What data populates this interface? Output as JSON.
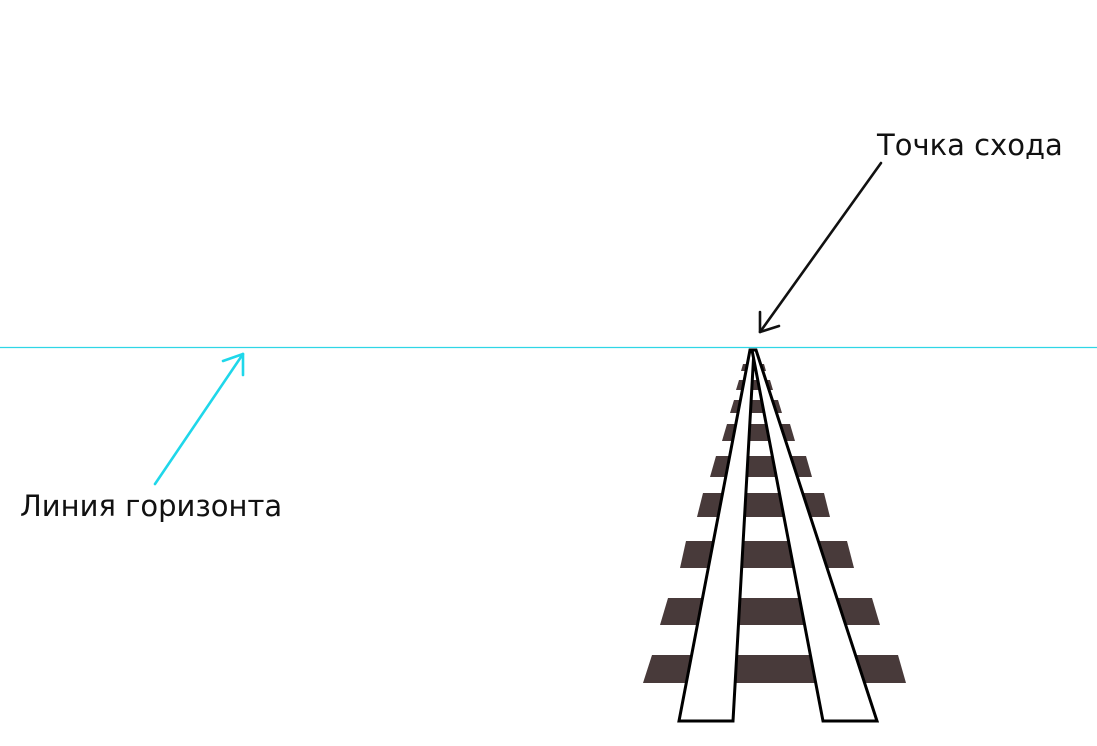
{
  "labels": {
    "vanishing_point": "Точка схода",
    "horizon_line": "Линия горизонта"
  },
  "colors": {
    "background": "#ffffff",
    "horizon_line": "#2fd6e6",
    "horizon_arrow": "#1fd7ea",
    "vanishing_arrow": "#111111",
    "sleeper": "#483a3a",
    "rail_fill": "#ffffff",
    "rail_stroke": "#000000",
    "text": "#111111"
  }
}
